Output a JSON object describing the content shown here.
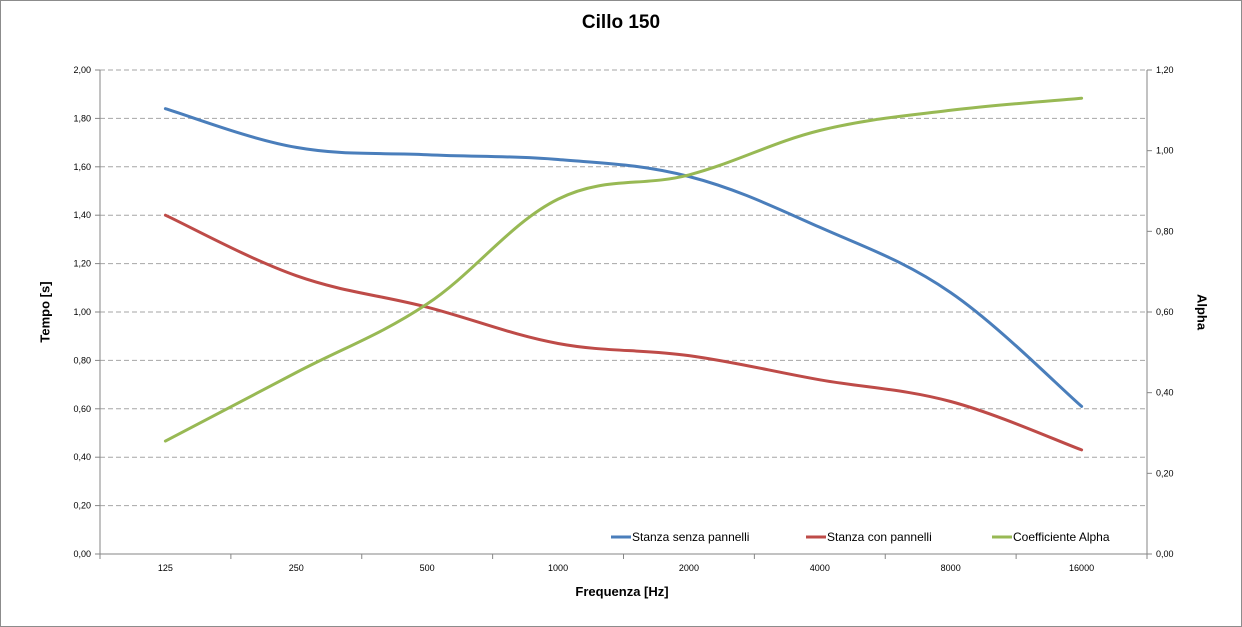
{
  "chart_data": {
    "type": "line",
    "title": "Cillo 150",
    "xlabel": "Frequenza [Hz]",
    "ylabel": "Tempo [s]",
    "y2label": "Alpha",
    "categories": [
      "125",
      "250",
      "500",
      "1000",
      "2000",
      "4000",
      "8000",
      "16000"
    ],
    "ylim": [
      0,
      2
    ],
    "y2lim": [
      0,
      1.2
    ],
    "y_ticks": [
      "0,00",
      "0,20",
      "0,40",
      "0,60",
      "0,80",
      "1,00",
      "1,20",
      "1,40",
      "1,60",
      "1,80",
      "2,00"
    ],
    "y2_ticks": [
      "0,00",
      "0,20",
      "0,40",
      "0,60",
      "0,80",
      "1,00",
      "1,20"
    ],
    "grid": true,
    "legend_position": "bottom-right",
    "series": [
      {
        "name": "Stanza senza pannelli",
        "axis": "left",
        "color": "#4a7ebb",
        "values": [
          1.84,
          1.68,
          1.65,
          1.63,
          1.56,
          1.35,
          1.08,
          0.61
        ]
      },
      {
        "name": "Stanza con pannelli",
        "axis": "left",
        "color": "#be4b48",
        "values": [
          1.4,
          1.15,
          1.02,
          0.87,
          0.82,
          0.72,
          0.63,
          0.43
        ]
      },
      {
        "name": "Coefficiente Alpha",
        "axis": "right",
        "color": "#98b954",
        "values": [
          0.28,
          0.45,
          0.62,
          0.88,
          0.94,
          1.05,
          1.1,
          1.13
        ]
      }
    ]
  }
}
